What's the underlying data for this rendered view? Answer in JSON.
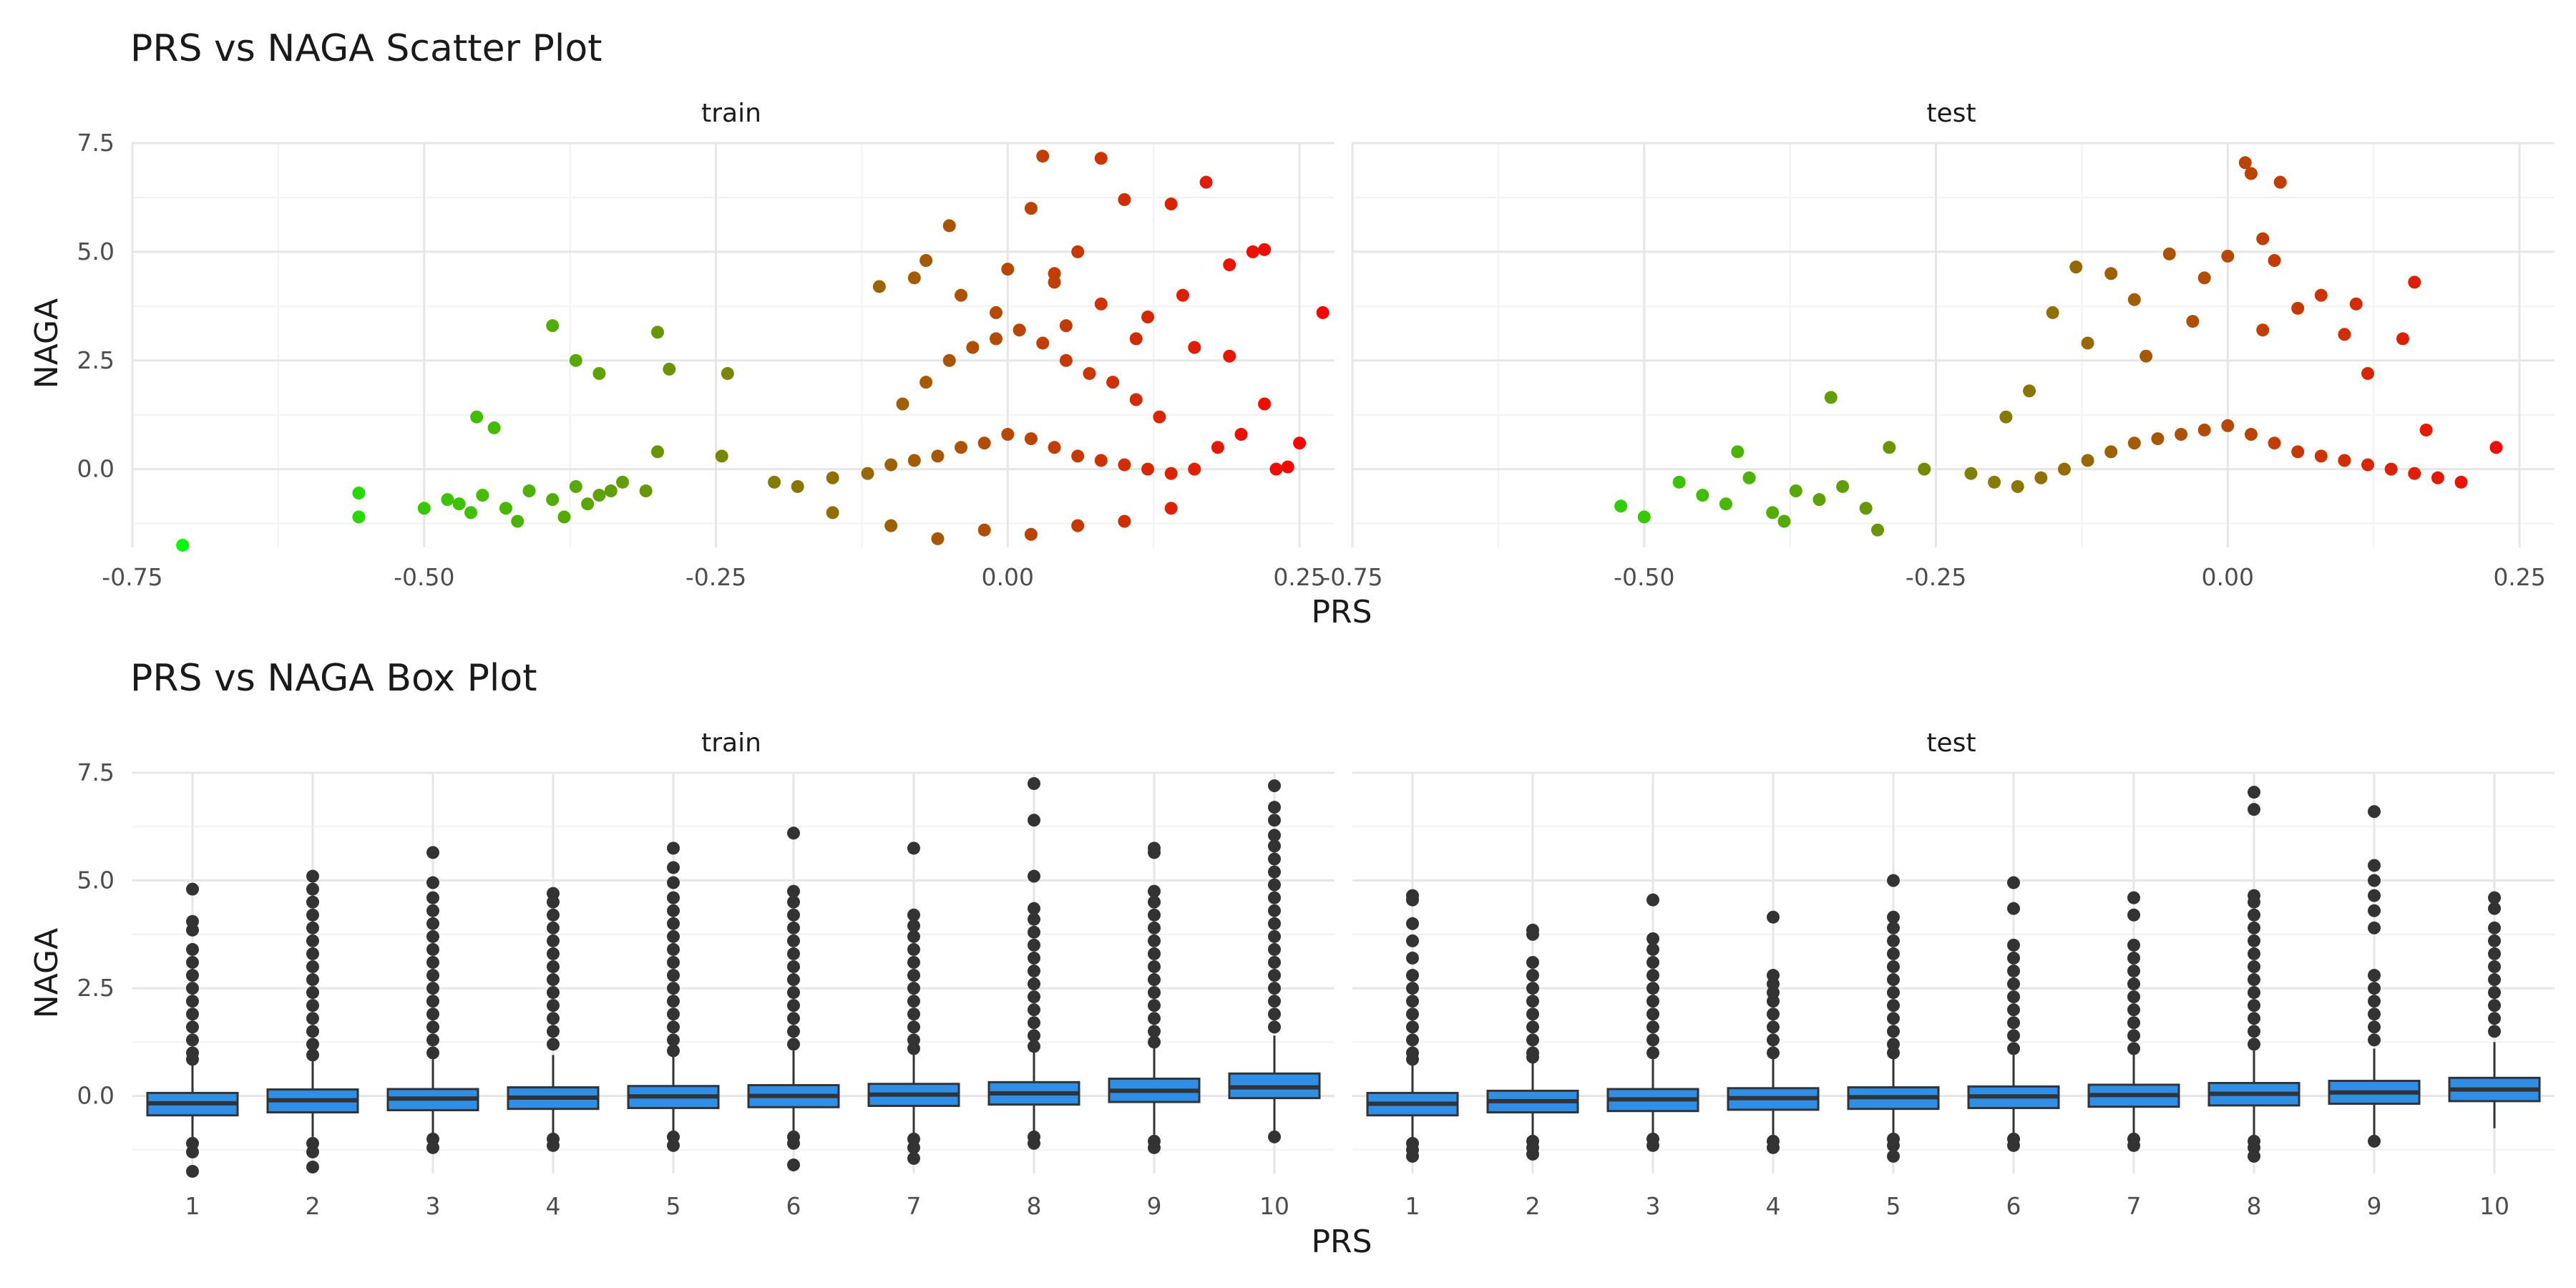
{
  "chart_data": [
    {
      "type": "scatter",
      "title": "PRS vs NAGA Scatter Plot",
      "xlabel": "PRS",
      "ylabel": "NAGA",
      "facets": [
        "train",
        "test"
      ],
      "xlim": [
        -0.75,
        0.28
      ],
      "ylim": [
        -1.8,
        7.5
      ],
      "xticks": [
        -0.75,
        -0.5,
        -0.25,
        0.0,
        0.25
      ],
      "xtick_labels": [
        "-0.75",
        "-0.50",
        "-0.25",
        "0.00",
        "0.25"
      ],
      "yticks": [
        0.0,
        2.5,
        5.0,
        7.5
      ],
      "ytick_labels": [
        "0.0",
        "2.5",
        "5.0",
        "7.5"
      ],
      "grid": true,
      "color_scale": {
        "low": "#00ff00",
        "high": "#ff0000"
      },
      "series": [
        {
          "facet": "train",
          "x": [
            -0.707,
            -0.556,
            -0.556,
            -0.39,
            -0.37,
            -0.35,
            -0.3,
            -0.29,
            -0.455,
            -0.44,
            -0.3,
            -0.24,
            -0.245,
            -0.48,
            -0.47,
            -0.45,
            -0.43,
            -0.41,
            -0.39,
            -0.37,
            -0.35,
            -0.33,
            -0.31,
            -0.5,
            -0.46,
            -0.42,
            -0.38,
            -0.36,
            -0.34,
            -0.2,
            -0.18,
            -0.15,
            -0.12,
            -0.1,
            -0.08,
            -0.06,
            -0.04,
            -0.02,
            0.0,
            0.02,
            0.04,
            0.06,
            0.08,
            0.1,
            0.12,
            0.14,
            0.16,
            -0.09,
            -0.07,
            -0.05,
            -0.03,
            -0.01,
            0.01,
            0.03,
            0.05,
            0.07,
            0.09,
            0.11,
            0.13,
            0.03,
            -0.05,
            0.08,
            0.06,
            0.1,
            0.14,
            0.17,
            0.19,
            0.02,
            0.04,
            0.15,
            0.21,
            0.22,
            0.27,
            0.23,
            0.24,
            0.25,
            0.22,
            0.2,
            0.18,
            -0.15,
            -0.1,
            -0.06,
            -0.02,
            0.02,
            0.06,
            0.1,
            0.14,
            -0.04,
            0.0,
            0.04,
            0.08,
            0.12,
            -0.07,
            -0.11,
            0.16,
            0.19,
            -0.01,
            0.05,
            0.11,
            -0.08
          ],
          "y": [
            -1.75,
            -1.1,
            -0.55,
            3.3,
            2.5,
            2.2,
            3.15,
            2.3,
            1.2,
            0.95,
            0.4,
            2.2,
            0.3,
            -0.7,
            -0.8,
            -0.6,
            -0.9,
            -0.5,
            -0.7,
            -0.4,
            -0.6,
            -0.3,
            -0.5,
            -0.9,
            -1.0,
            -1.2,
            -1.1,
            -0.8,
            -0.5,
            -0.3,
            -0.4,
            -0.2,
            -0.1,
            0.1,
            0.2,
            0.3,
            0.5,
            0.6,
            0.8,
            0.7,
            0.5,
            0.3,
            0.2,
            0.1,
            0.0,
            -0.1,
            0.0,
            1.5,
            2.0,
            2.5,
            2.8,
            3.0,
            3.2,
            2.9,
            2.5,
            2.2,
            2.0,
            1.6,
            1.2,
            7.2,
            5.6,
            7.15,
            5.0,
            6.2,
            6.1,
            6.6,
            4.7,
            6.0,
            4.5,
            4.0,
            5.0,
            5.05,
            3.6,
            0.0,
            0.05,
            0.6,
            1.5,
            0.8,
            0.5,
            -1.0,
            -1.3,
            -1.6,
            -1.4,
            -1.5,
            -1.3,
            -1.2,
            -0.9,
            4.0,
            4.6,
            4.3,
            3.8,
            3.5,
            4.8,
            4.2,
            2.8,
            2.6,
            3.6,
            3.3,
            3.0,
            4.4
          ]
        },
        {
          "facet": "test",
          "x": [
            -0.52,
            -0.5,
            -0.47,
            -0.45,
            -0.43,
            -0.41,
            -0.39,
            -0.37,
            -0.35,
            -0.33,
            -0.31,
            -0.29,
            -0.3,
            -0.34,
            -0.42,
            -0.38,
            -0.26,
            -0.22,
            -0.2,
            -0.18,
            -0.16,
            -0.14,
            -0.12,
            -0.1,
            -0.08,
            -0.06,
            -0.04,
            -0.02,
            0.0,
            0.02,
            0.04,
            0.06,
            0.08,
            0.1,
            0.12,
            0.14,
            0.16,
            0.18,
            0.2,
            0.23,
            0.015,
            0.02,
            0.045,
            0.03,
            -0.13,
            -0.1,
            -0.05,
            0.0,
            -0.02,
            0.04,
            0.08,
            0.11,
            0.16,
            0.15,
            -0.15,
            -0.08,
            -0.03,
            0.06,
            0.1,
            -0.17,
            -0.12,
            -0.07,
            0.03,
            0.12,
            -0.19,
            0.17
          ],
          "y": [
            -0.85,
            -1.1,
            -0.3,
            -0.6,
            -0.8,
            -0.2,
            -1.0,
            -0.5,
            -0.7,
            -0.4,
            -0.9,
            0.5,
            -1.4,
            1.65,
            0.4,
            -1.2,
            0.0,
            -0.1,
            -0.3,
            -0.4,
            -0.2,
            0.0,
            0.2,
            0.4,
            0.6,
            0.7,
            0.8,
            0.9,
            1.0,
            0.8,
            0.6,
            0.4,
            0.3,
            0.2,
            0.1,
            0.0,
            -0.1,
            -0.2,
            -0.3,
            0.5,
            7.05,
            6.8,
            6.6,
            5.3,
            4.65,
            4.5,
            4.95,
            4.9,
            4.4,
            4.8,
            4.0,
            3.8,
            4.3,
            3.0,
            3.6,
            3.9,
            3.4,
            3.7,
            3.1,
            1.8,
            2.9,
            2.6,
            3.2,
            2.2,
            1.2,
            0.9
          ]
        }
      ]
    },
    {
      "type": "box",
      "title": "PRS vs NAGA Box Plot",
      "xlabel": "PRS",
      "ylabel": "NAGA",
      "facets": [
        "train",
        "test"
      ],
      "categories": [
        "1",
        "2",
        "3",
        "4",
        "5",
        "6",
        "7",
        "8",
        "9",
        "10"
      ],
      "ylim": [
        -1.8,
        7.5
      ],
      "yticks": [
        0.0,
        2.5,
        5.0,
        7.5
      ],
      "ytick_labels": [
        "0.0",
        "2.5",
        "5.0",
        "7.5"
      ],
      "grid": true,
      "box_color": "#2e8fe8",
      "series": [
        {
          "facet": "train",
          "boxes": [
            {
              "q1": -0.45,
              "median": -0.17,
              "q3": 0.07,
              "lower": -1.0,
              "upper": 0.75,
              "outliers": [
                4.8,
                4.05,
                3.85,
                3.4,
                3.1,
                2.8,
                2.5,
                2.2,
                1.9,
                1.6,
                1.3,
                1.0,
                0.85,
                -1.1,
                -1.3,
                -1.75
              ]
            },
            {
              "q1": -0.38,
              "median": -0.1,
              "q3": 0.15,
              "lower": -0.95,
              "upper": 0.85,
              "outliers": [
                5.1,
                4.8,
                4.5,
                4.2,
                3.9,
                3.6,
                3.3,
                3.0,
                2.7,
                2.4,
                2.1,
                1.8,
                1.5,
                1.2,
                0.95,
                -1.1,
                -1.3,
                -1.65
              ]
            },
            {
              "q1": -0.33,
              "median": -0.06,
              "q3": 0.16,
              "lower": -0.9,
              "upper": 0.85,
              "outliers": [
                5.65,
                4.95,
                4.6,
                4.3,
                4.0,
                3.7,
                3.4,
                3.1,
                2.8,
                2.5,
                2.2,
                1.9,
                1.6,
                1.3,
                1.0,
                -1.0,
                -1.2
              ]
            },
            {
              "q1": -0.3,
              "median": -0.04,
              "q3": 0.2,
              "lower": -0.95,
              "upper": 0.95,
              "outliers": [
                4.7,
                4.5,
                4.2,
                3.9,
                3.6,
                3.3,
                3.0,
                2.7,
                2.4,
                2.1,
                1.8,
                1.5,
                1.2,
                -1.0,
                -1.15
              ]
            },
            {
              "q1": -0.28,
              "median": -0.01,
              "q3": 0.23,
              "lower": -0.9,
              "upper": 1.0,
              "outliers": [
                5.75,
                5.3,
                4.95,
                4.6,
                4.3,
                4.0,
                3.7,
                3.4,
                3.1,
                2.8,
                2.5,
                2.2,
                1.9,
                1.6,
                1.3,
                1.05,
                -0.95,
                -1.15
              ]
            },
            {
              "q1": -0.26,
              "median": 0.0,
              "q3": 0.25,
              "lower": -0.9,
              "upper": 1.05,
              "outliers": [
                6.1,
                4.75,
                4.5,
                4.2,
                3.9,
                3.6,
                3.3,
                3.0,
                2.7,
                2.4,
                2.1,
                1.8,
                1.5,
                1.2,
                -0.95,
                -1.1,
                -1.6
              ]
            },
            {
              "q1": -0.23,
              "median": 0.03,
              "q3": 0.28,
              "lower": -0.9,
              "upper": 1.05,
              "outliers": [
                5.75,
                4.2,
                3.95,
                3.7,
                3.4,
                3.1,
                2.8,
                2.5,
                2.2,
                1.9,
                1.6,
                1.3,
                1.1,
                -1.0,
                -1.2,
                -1.45
              ]
            },
            {
              "q1": -0.2,
              "median": 0.06,
              "q3": 0.32,
              "lower": -0.95,
              "upper": 1.1,
              "outliers": [
                7.25,
                6.4,
                5.1,
                4.35,
                4.1,
                3.8,
                3.5,
                3.2,
                2.9,
                2.6,
                2.3,
                2.0,
                1.7,
                1.4,
                1.15,
                -0.95,
                -1.1
              ]
            },
            {
              "q1": -0.14,
              "median": 0.12,
              "q3": 0.4,
              "lower": -0.9,
              "upper": 1.2,
              "outliers": [
                5.75,
                5.65,
                4.75,
                4.5,
                4.2,
                3.9,
                3.6,
                3.3,
                3.0,
                2.7,
                2.4,
                2.1,
                1.8,
                1.5,
                1.25,
                -1.05,
                -1.2
              ]
            },
            {
              "q1": -0.05,
              "median": 0.2,
              "q3": 0.52,
              "lower": -0.9,
              "upper": 1.4,
              "outliers": [
                7.2,
                6.7,
                6.4,
                6.05,
                5.8,
                5.5,
                5.2,
                4.9,
                4.6,
                4.3,
                4.0,
                3.7,
                3.4,
                3.1,
                2.8,
                2.5,
                2.2,
                1.9,
                1.6,
                -0.95
              ]
            }
          ]
        },
        {
          "facet": "test",
          "boxes": [
            {
              "q1": -0.45,
              "median": -0.18,
              "q3": 0.07,
              "lower": -1.0,
              "upper": 0.75,
              "outliers": [
                4.65,
                4.55,
                4.0,
                3.6,
                3.2,
                2.8,
                2.5,
                2.2,
                1.9,
                1.6,
                1.3,
                1.0,
                0.85,
                -1.1,
                -1.25,
                -1.4
              ]
            },
            {
              "q1": -0.38,
              "median": -0.12,
              "q3": 0.12,
              "lower": -0.95,
              "upper": 0.8,
              "outliers": [
                3.85,
                3.75,
                3.1,
                2.8,
                2.5,
                2.2,
                1.9,
                1.6,
                1.3,
                1.0,
                0.9,
                -1.05,
                -1.2,
                -1.35
              ]
            },
            {
              "q1": -0.35,
              "median": -0.08,
              "q3": 0.16,
              "lower": -0.95,
              "upper": 0.85,
              "outliers": [
                4.55,
                3.65,
                3.4,
                3.1,
                2.8,
                2.5,
                2.2,
                1.9,
                1.6,
                1.3,
                1.0,
                -1.0,
                -1.15
              ]
            },
            {
              "q1": -0.32,
              "median": -0.05,
              "q3": 0.18,
              "lower": -0.9,
              "upper": 0.9,
              "outliers": [
                4.15,
                2.8,
                2.6,
                2.4,
                2.2,
                1.9,
                1.6,
                1.3,
                1.0,
                -1.05,
                -1.2
              ]
            },
            {
              "q1": -0.3,
              "median": -0.03,
              "q3": 0.2,
              "lower": -0.95,
              "upper": 0.95,
              "outliers": [
                5.0,
                4.15,
                3.9,
                3.6,
                3.3,
                3.0,
                2.7,
                2.4,
                2.1,
                1.8,
                1.5,
                1.2,
                1.0,
                -1.0,
                -1.15,
                -1.4
              ]
            },
            {
              "q1": -0.28,
              "median": -0.01,
              "q3": 0.22,
              "lower": -0.9,
              "upper": 0.95,
              "outliers": [
                4.95,
                4.35,
                3.5,
                3.2,
                2.9,
                2.6,
                2.3,
                2.0,
                1.7,
                1.4,
                1.1,
                -1.0,
                -1.15
              ]
            },
            {
              "q1": -0.25,
              "median": 0.02,
              "q3": 0.26,
              "lower": -0.95,
              "upper": 1.0,
              "outliers": [
                4.6,
                4.2,
                3.5,
                3.2,
                2.9,
                2.6,
                2.3,
                2.0,
                1.7,
                1.4,
                1.1,
                -1.0,
                -1.15
              ]
            },
            {
              "q1": -0.22,
              "median": 0.05,
              "q3": 0.3,
              "lower": -0.95,
              "upper": 1.05,
              "outliers": [
                7.05,
                6.65,
                4.65,
                4.5,
                4.2,
                3.9,
                3.6,
                3.3,
                3.0,
                2.7,
                2.4,
                2.1,
                1.8,
                1.5,
                1.2,
                -1.05,
                -1.2,
                -1.4
              ]
            },
            {
              "q1": -0.18,
              "median": 0.08,
              "q3": 0.35,
              "lower": -0.95,
              "upper": 1.1,
              "outliers": [
                6.6,
                5.35,
                5.0,
                4.65,
                4.3,
                3.9,
                2.8,
                2.5,
                2.2,
                1.9,
                1.6,
                1.3,
                -1.05
              ]
            },
            {
              "q1": -0.12,
              "median": 0.15,
              "q3": 0.42,
              "lower": -0.75,
              "upper": 1.25,
              "outliers": [
                4.6,
                4.35,
                3.9,
                3.6,
                3.3,
                3.0,
                2.7,
                2.4,
                2.1,
                1.8,
                1.5
              ]
            }
          ]
        }
      ]
    }
  ]
}
